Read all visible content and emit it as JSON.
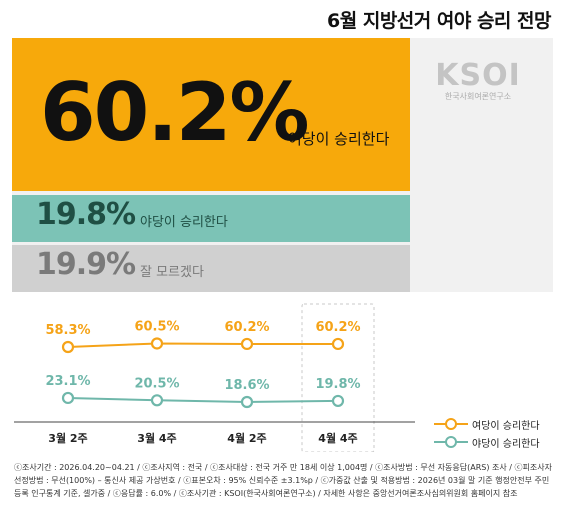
{
  "title": "6월 지방선거 여야 승리 전망",
  "logo": {
    "mark": "KSOI",
    "subtitle": "한국사회여론연구소"
  },
  "summary": {
    "ruling": {
      "value": "60.2%",
      "label": "여당이 승리한다"
    },
    "opposition": {
      "value": "19.8%",
      "label": "야당이 승리한다"
    },
    "unsure": {
      "value": "19.9%",
      "label": "잘 모르겠다"
    }
  },
  "colors": {
    "ruling": "#f7a90b",
    "opposition": "#7cc3b6",
    "unsure": "#d0d0d0",
    "ruling_line": "#f5a318",
    "opposition_line": "#6fb7aa"
  },
  "chart_data": {
    "type": "line",
    "categories": [
      "3월 2주",
      "3월 4주",
      "4월 2주",
      "4월 4주"
    ],
    "series": [
      {
        "name": "여당이 승리한다",
        "values": [
          58.3,
          60.5,
          60.2,
          60.2
        ],
        "labels": [
          "58.3%",
          "60.5%",
          "60.2%",
          "60.2%"
        ]
      },
      {
        "name": "야당이 승리한다",
        "values": [
          23.1,
          20.5,
          18.6,
          19.8
        ],
        "labels": [
          "23.1%",
          "20.5%",
          "18.6%",
          "19.8%"
        ]
      }
    ],
    "highlight_category": "4월 4주",
    "legend_position": "bottom-right",
    "grid": false
  },
  "footnote": "ⓒ조사기간 : 2026.04.20~04.21 / ⓒ조사지역 : 전국 / ⓒ조사대상 : 전국 거주 만 18세 이상 1,004명 / ⓒ조사방법 : 무선 자동응답(ARS) 조사 / ⓒ피조사자선정방법 : 무선(100%) – 통신사 제공 가상번호 / ⓒ표본오차 : 95% 신뢰수준 ±3.1%p / ⓒ가중값 산출 및 적용방법 : 2026년 03월 말 기준 행정안전부 주민등록 인구통계 기준, 셀가중 / ⓒ응답률 : 6.0% / ⓒ조사기관 : KSOI(한국사회여론연구소) / 자세한 사항은 중앙선거여론조사심의위원회 홈페이지 참조"
}
